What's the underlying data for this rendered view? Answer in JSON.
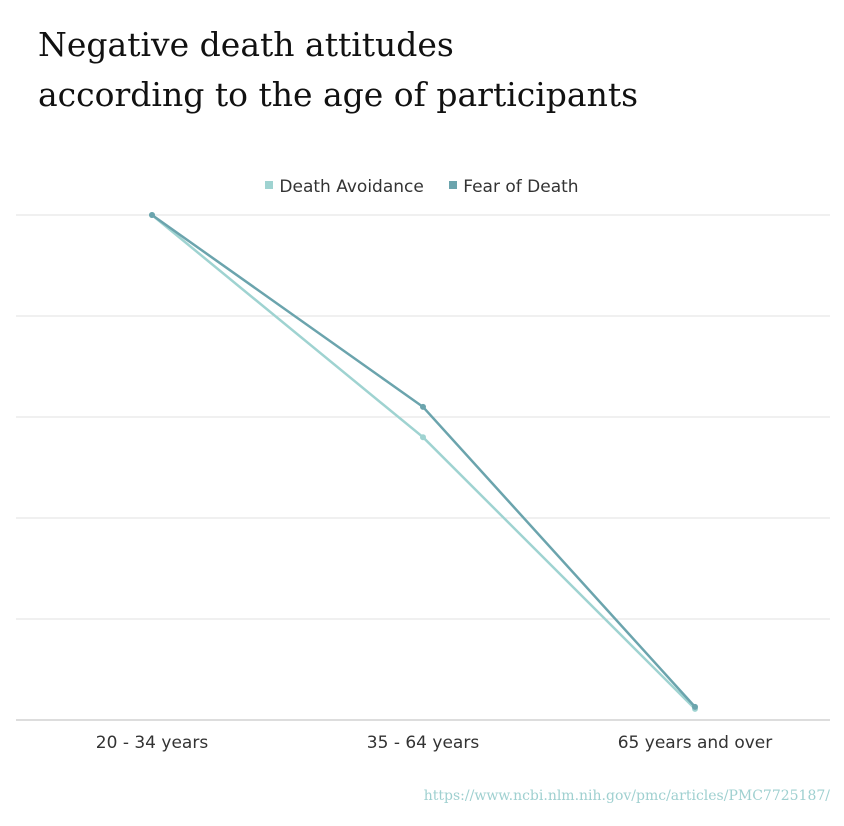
{
  "chart_data": {
    "type": "line",
    "title": "Negative death attitudes according to the age of participants",
    "categories": [
      "20 - 34 years",
      "35 - 64 years",
      "65 years and over"
    ],
    "series": [
      {
        "name": "Death Avoidance",
        "values": [
          5.0,
          2.8,
          0.11
        ],
        "color": "#9fd3d1"
      },
      {
        "name": "Fear of Death",
        "values": [
          5.0,
          3.1,
          0.13
        ],
        "color": "#6ba4ad"
      }
    ],
    "ylim": [
      0,
      5
    ],
    "grid": true,
    "legend": "top-center",
    "xlabel": "",
    "ylabel": ""
  },
  "source": "https://www.ncbi.nlm.nih.gov/pmc/articles/PMC7725187/"
}
